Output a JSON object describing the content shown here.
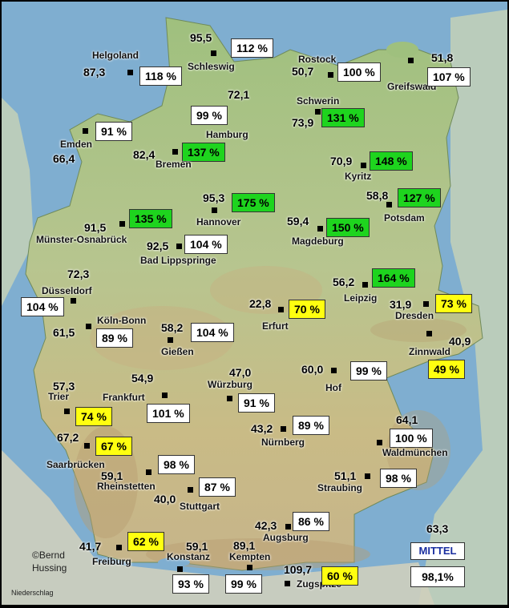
{
  "stations": [
    {
      "id": "schleswig",
      "name": "Schleswig",
      "value": "95,5",
      "pct": "112 %",
      "c": "w"
    },
    {
      "id": "helgoland",
      "name": "Helgoland",
      "value": "87,3",
      "pct": "118 %",
      "c": "w"
    },
    {
      "id": "rostock",
      "name": "Rostock",
      "value": "50,7",
      "pct": "100 %",
      "c": "w"
    },
    {
      "id": "greifswald",
      "name": "Greifswald",
      "value": "51,8",
      "pct": "107 %",
      "c": "w"
    },
    {
      "id": "hamburg",
      "name": "Hamburg",
      "value": "72,1",
      "pct": "99 %",
      "c": "w"
    },
    {
      "id": "schwerin",
      "name": "Schwerin",
      "value": "73,9",
      "pct": "131 %",
      "c": "g"
    },
    {
      "id": "emden",
      "name": "Emden",
      "value": "66,4",
      "pct": "91 %",
      "c": "w"
    },
    {
      "id": "bremen",
      "name": "Bremen",
      "value": "82,4",
      "pct": "137 %",
      "c": "g"
    },
    {
      "id": "kyritz",
      "name": "Kyritz",
      "value": "70,9",
      "pct": "148 %",
      "c": "g"
    },
    {
      "id": "hannover",
      "name": "Hannover",
      "value": "95,3",
      "pct": "175 %",
      "c": "g"
    },
    {
      "id": "potsdam",
      "name": "Potsdam",
      "value": "58,8",
      "pct": "127 %",
      "c": "g"
    },
    {
      "id": "muenster",
      "name": "Münster-Osnabrück",
      "value": "91,5",
      "pct": "135 %",
      "c": "g"
    },
    {
      "id": "magdeburg",
      "name": "Magdeburg",
      "value": "59,4",
      "pct": "150 %",
      "c": "g"
    },
    {
      "id": "lippspringe",
      "name": "Bad Lippspringe",
      "value": "92,5",
      "pct": "104 %",
      "c": "w"
    },
    {
      "id": "duesseldorf",
      "name": "Düsseldorf",
      "value": "72,3",
      "pct": "104 %",
      "c": "w"
    },
    {
      "id": "leipzig",
      "name": "Leipzig",
      "value": "56,2",
      "pct": "164 %",
      "c": "g"
    },
    {
      "id": "erfurt",
      "name": "Erfurt",
      "value": "22,8",
      "pct": "70 %",
      "c": "y"
    },
    {
      "id": "dresden",
      "name": "Dresden",
      "value": "31,9",
      "pct": "73 %",
      "c": "y"
    },
    {
      "id": "koeln",
      "name": "Köln-Bonn",
      "value": "61,5",
      "pct": "89 %",
      "c": "w"
    },
    {
      "id": "giessen",
      "name": "Gießen",
      "value": "58,2",
      "pct": "104 %",
      "c": "w"
    },
    {
      "id": "zinnwald",
      "name": "Zinnwald",
      "value": "40,9",
      "pct": "49 %",
      "c": "y"
    },
    {
      "id": "hof",
      "name": "Hof",
      "value": "60,0",
      "pct": "99 %",
      "c": "w"
    },
    {
      "id": "trier",
      "name": "Trier",
      "value": "57,3",
      "pct": "74 %",
      "c": "y"
    },
    {
      "id": "frankfurt",
      "name": "Frankfurt",
      "value": "54,9",
      "pct": "101 %",
      "c": "w"
    },
    {
      "id": "wuerzburg",
      "name": "Würzburg",
      "value": "47,0",
      "pct": "91 %",
      "c": "w"
    },
    {
      "id": "nuernberg",
      "name": "Nürnberg",
      "value": "43,2",
      "pct": "89 %",
      "c": "w"
    },
    {
      "id": "saarbruecken",
      "name": "Saarbrücken",
      "value": "67,2",
      "pct": "67 %",
      "c": "y"
    },
    {
      "id": "waldmuenchen",
      "name": "Waldmünchen",
      "value": "64,1",
      "pct": "100 %",
      "c": "w"
    },
    {
      "id": "rheinstetten",
      "name": "Rheinstetten",
      "value": "59,1",
      "pct": "98 %",
      "c": "w"
    },
    {
      "id": "straubing",
      "name": "Straubing",
      "value": "51,1",
      "pct": "98 %",
      "c": "w"
    },
    {
      "id": "stuttgart",
      "name": "Stuttgart",
      "value": "40,0",
      "pct": "87 %",
      "c": "w"
    },
    {
      "id": "augsburg",
      "name": "Augsburg",
      "value": "42,3",
      "pct": "86 %",
      "c": "w"
    },
    {
      "id": "freiburg",
      "name": "Freiburg",
      "value": "41,7",
      "pct": "62 %",
      "c": "y"
    },
    {
      "id": "konstanz",
      "name": "Konstanz",
      "value": "59,1",
      "pct": "93 %",
      "c": "w"
    },
    {
      "id": "kempten",
      "name": "Kempten",
      "value": "89,1",
      "pct": "99 %",
      "c": "w"
    },
    {
      "id": "zugspitze",
      "name": "Zugspitze",
      "value": "109,7",
      "pct": "60 %",
      "c": "y"
    }
  ],
  "mittel": {
    "label": "MITTEL",
    "value": "63,3",
    "pct": "98,1%"
  },
  "copyright_line1": "©Bernd",
  "copyright_line2": "Hussing",
  "footer": "Niederschlag",
  "colors": {
    "green": "#1ed41e",
    "yellow": "#ffff10",
    "white": "#ffffff",
    "land": "#a9c48a",
    "sea": "#7faed0"
  }
}
